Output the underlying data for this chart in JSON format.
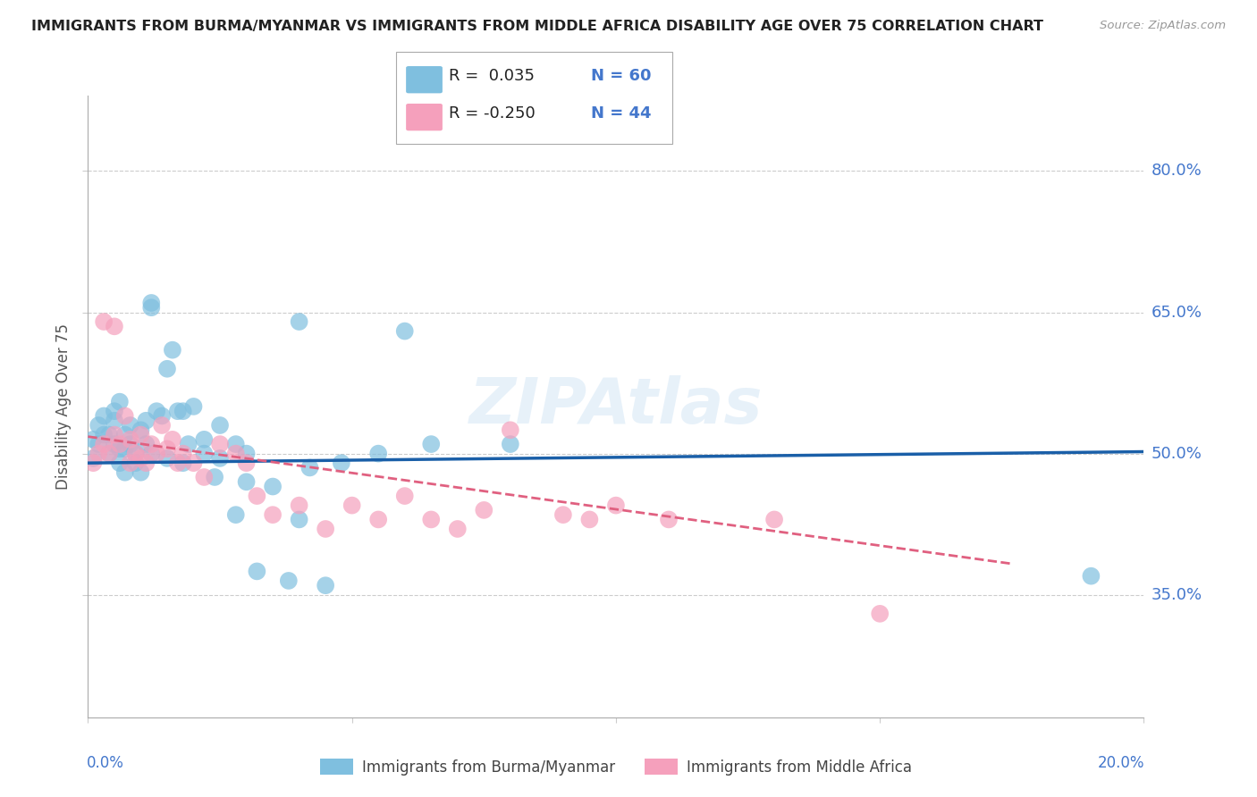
{
  "title": "IMMIGRANTS FROM BURMA/MYANMAR VS IMMIGRANTS FROM MIDDLE AFRICA DISABILITY AGE OVER 75 CORRELATION CHART",
  "source": "Source: ZipAtlas.com",
  "ylabel": "Disability Age Over 75",
  "ytick_labels": [
    "80.0%",
    "65.0%",
    "50.0%",
    "35.0%"
  ],
  "ytick_values": [
    0.8,
    0.65,
    0.5,
    0.35
  ],
  "xlim": [
    0.0,
    0.2
  ],
  "ylim": [
    0.22,
    0.88
  ],
  "legend_blue_R": "R =  0.035",
  "legend_blue_N": "N = 60",
  "legend_pink_R": "R = -0.250",
  "legend_pink_N": "N = 44",
  "blue_color": "#7fbfdf",
  "pink_color": "#f5a0bc",
  "line_blue_color": "#1a5fa8",
  "line_pink_color": "#e06080",
  "label_color": "#4477cc",
  "background_color": "#ffffff",
  "grid_color": "#cccccc",
  "blue_scatter_x": [
    0.001,
    0.001,
    0.002,
    0.002,
    0.003,
    0.003,
    0.004,
    0.004,
    0.005,
    0.005,
    0.005,
    0.006,
    0.006,
    0.006,
    0.007,
    0.007,
    0.007,
    0.008,
    0.008,
    0.009,
    0.009,
    0.01,
    0.01,
    0.011,
    0.011,
    0.012,
    0.012,
    0.013,
    0.014,
    0.015,
    0.016,
    0.017,
    0.018,
    0.019,
    0.02,
    0.022,
    0.024,
    0.025,
    0.028,
    0.03,
    0.032,
    0.035,
    0.038,
    0.04,
    0.042,
    0.045,
    0.048,
    0.055,
    0.06,
    0.065,
    0.04,
    0.025,
    0.03,
    0.028,
    0.022,
    0.018,
    0.015,
    0.012,
    0.19,
    0.08
  ],
  "blue_scatter_y": [
    0.495,
    0.515,
    0.51,
    0.53,
    0.52,
    0.54,
    0.5,
    0.52,
    0.51,
    0.535,
    0.545,
    0.49,
    0.505,
    0.555,
    0.505,
    0.52,
    0.48,
    0.53,
    0.51,
    0.5,
    0.49,
    0.525,
    0.48,
    0.51,
    0.535,
    0.66,
    0.655,
    0.545,
    0.54,
    0.59,
    0.61,
    0.545,
    0.545,
    0.51,
    0.55,
    0.515,
    0.475,
    0.53,
    0.435,
    0.5,
    0.375,
    0.465,
    0.365,
    0.43,
    0.485,
    0.36,
    0.49,
    0.5,
    0.63,
    0.51,
    0.64,
    0.495,
    0.47,
    0.51,
    0.5,
    0.49,
    0.495,
    0.5,
    0.37,
    0.51
  ],
  "pink_scatter_x": [
    0.001,
    0.002,
    0.003,
    0.003,
    0.004,
    0.005,
    0.005,
    0.006,
    0.007,
    0.008,
    0.008,
    0.009,
    0.01,
    0.01,
    0.011,
    0.012,
    0.013,
    0.014,
    0.015,
    0.016,
    0.017,
    0.018,
    0.02,
    0.022,
    0.025,
    0.028,
    0.03,
    0.032,
    0.035,
    0.04,
    0.045,
    0.05,
    0.055,
    0.06,
    0.065,
    0.07,
    0.075,
    0.08,
    0.09,
    0.095,
    0.1,
    0.11,
    0.13,
    0.15
  ],
  "pink_scatter_y": [
    0.49,
    0.5,
    0.51,
    0.64,
    0.5,
    0.52,
    0.635,
    0.51,
    0.54,
    0.515,
    0.49,
    0.5,
    0.495,
    0.52,
    0.49,
    0.51,
    0.5,
    0.53,
    0.505,
    0.515,
    0.49,
    0.5,
    0.49,
    0.475,
    0.51,
    0.5,
    0.49,
    0.455,
    0.435,
    0.445,
    0.42,
    0.445,
    0.43,
    0.455,
    0.43,
    0.42,
    0.44,
    0.525,
    0.435,
    0.43,
    0.445,
    0.43,
    0.43,
    0.33
  ],
  "blue_trend_x": [
    0.0,
    0.2
  ],
  "blue_trend_y": [
    0.49,
    0.502
  ],
  "pink_trend_x": [
    0.0,
    0.175
  ],
  "pink_trend_y": [
    0.518,
    0.383
  ]
}
